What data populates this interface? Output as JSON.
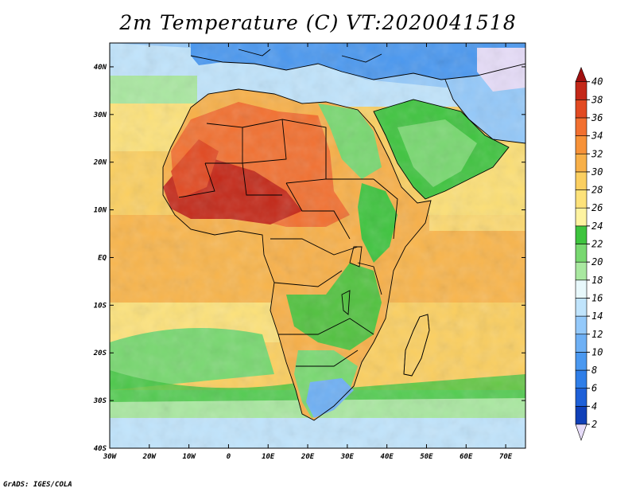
{
  "title": "2m Temperature (C) VT:2020041518",
  "credit": "GrADS: IGES/COLA",
  "map": {
    "region": "Africa",
    "lon_labels": [
      "30W",
      "20W",
      "10W",
      "0",
      "10E",
      "20E",
      "30E",
      "40E",
      "50E",
      "60E",
      "70E"
    ],
    "lat_labels": [
      "40N",
      "30N",
      "20N",
      "10N",
      "EQ",
      "10S",
      "20S",
      "30S",
      "40S"
    ],
    "lon_range": [
      -30,
      75
    ],
    "lat_range": [
      -40,
      45
    ]
  },
  "colorbar": {
    "levels": [
      "2",
      "4",
      "6",
      "8",
      "10",
      "12",
      "14",
      "16",
      "18",
      "20",
      "22",
      "24",
      "26",
      "28",
      "30",
      "32",
      "34",
      "36",
      "38",
      "40"
    ],
    "colors": [
      "#0d1a80",
      "#1040b8",
      "#1e60d8",
      "#2f7ee8",
      "#4a98f0",
      "#6eb0f5",
      "#94c9fa",
      "#c0e4fc",
      "#e8f8fb",
      "#a9e8a0",
      "#78d870",
      "#3ec43e",
      "#fef3a0",
      "#fde27a",
      "#fbcf60",
      "#f8b048",
      "#f79238",
      "#f27030",
      "#e24a22",
      "#c42818",
      "#a01010"
    ],
    "under_color": "#e6dcf8",
    "over_color": "#a01010"
  }
}
